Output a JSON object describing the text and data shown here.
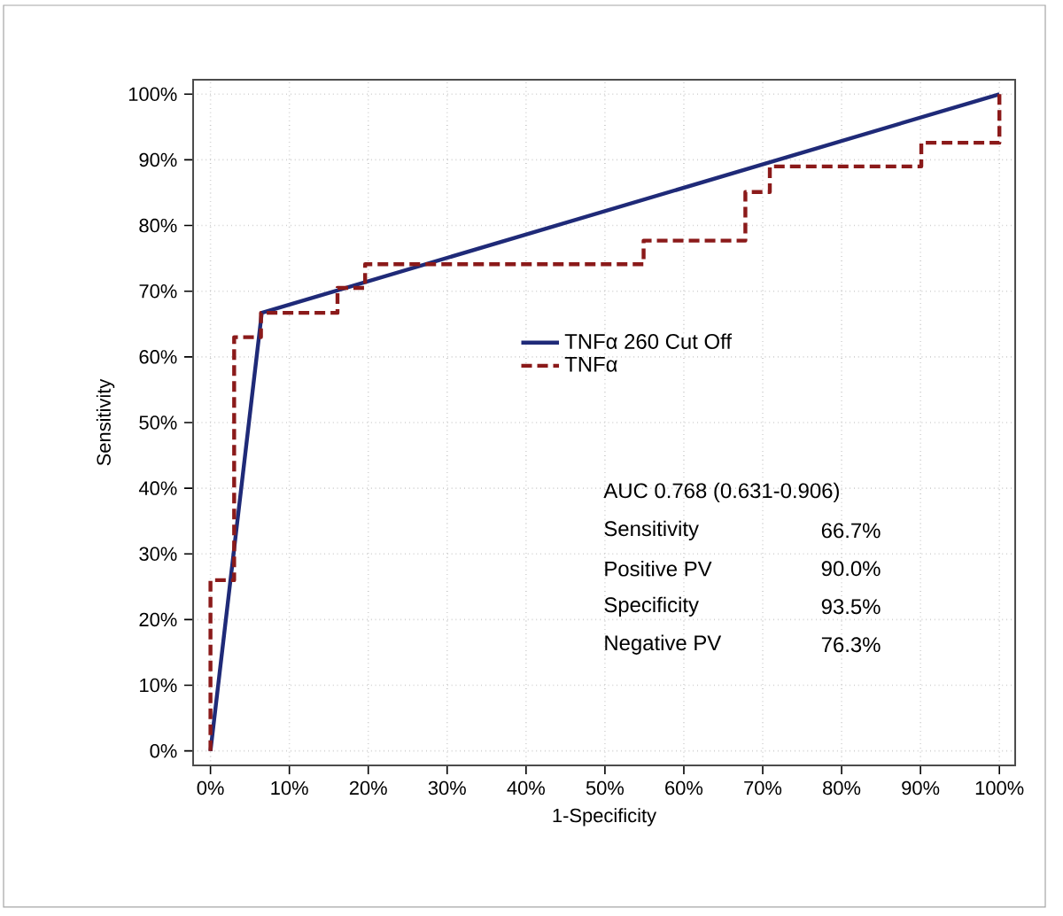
{
  "chart_data": {
    "type": "line",
    "xlabel": "1-Specificity",
    "ylabel": "Sensitivity",
    "xlim": [
      -2.2,
      102
    ],
    "ylim": [
      -2.2,
      102.2
    ],
    "xticks": [
      {
        "value": 0,
        "label": "0%"
      },
      {
        "value": 10,
        "label": "10%"
      },
      {
        "value": 20,
        "label": "20%"
      },
      {
        "value": 30,
        "label": "30%"
      },
      {
        "value": 40,
        "label": "40%"
      },
      {
        "value": 50,
        "label": "50%"
      },
      {
        "value": 60,
        "label": "60%"
      },
      {
        "value": 70,
        "label": "70%"
      },
      {
        "value": 80,
        "label": "80%"
      },
      {
        "value": 90,
        "label": "90%"
      },
      {
        "value": 100,
        "label": "100%"
      }
    ],
    "yticks": [
      {
        "value": 0,
        "label": "0%"
      },
      {
        "value": 10,
        "label": "10%"
      },
      {
        "value": 20,
        "label": "20%"
      },
      {
        "value": 30,
        "label": "30%"
      },
      {
        "value": 40,
        "label": "40%"
      },
      {
        "value": 50,
        "label": "50%"
      },
      {
        "value": 60,
        "label": "60%"
      },
      {
        "value": 70,
        "label": "70%"
      },
      {
        "value": 80,
        "label": "80%"
      },
      {
        "value": 90,
        "label": "90%"
      },
      {
        "value": 100,
        "label": "100%"
      }
    ],
    "grid": true,
    "legend": "center",
    "marker": "none",
    "series": [
      {
        "name": "TNFα 260 Cut Off",
        "color": "#1f2a78",
        "line_style": "solid",
        "x": [
          0,
          6.5,
          100
        ],
        "values": [
          0,
          66.7,
          100
        ]
      },
      {
        "name": "TNFα",
        "color": "#8b1a1a",
        "line_style": "dashed",
        "x": [
          0,
          0,
          3,
          3,
          6.4,
          6.4,
          16.1,
          16.1,
          19.6,
          19.6,
          54.9,
          54.9,
          67.8,
          67.8,
          70.9,
          70.9,
          90.1,
          90.1,
          100,
          100
        ],
        "values": [
          0,
          26,
          26,
          63,
          63,
          66.7,
          66.7,
          70.5,
          70.5,
          74.1,
          74.1,
          77.7,
          77.7,
          85.1,
          85.1,
          89,
          89,
          92.6,
          92.6,
          100
        ]
      }
    ],
    "annotations": [
      "AUC 0.768 (0.631-0.906)",
      "Sensitivity",
      "66.7%",
      "Positive PV",
      "90.0%",
      "Specificity",
      "93.5%",
      "Negative PV",
      "76.3%"
    ]
  }
}
